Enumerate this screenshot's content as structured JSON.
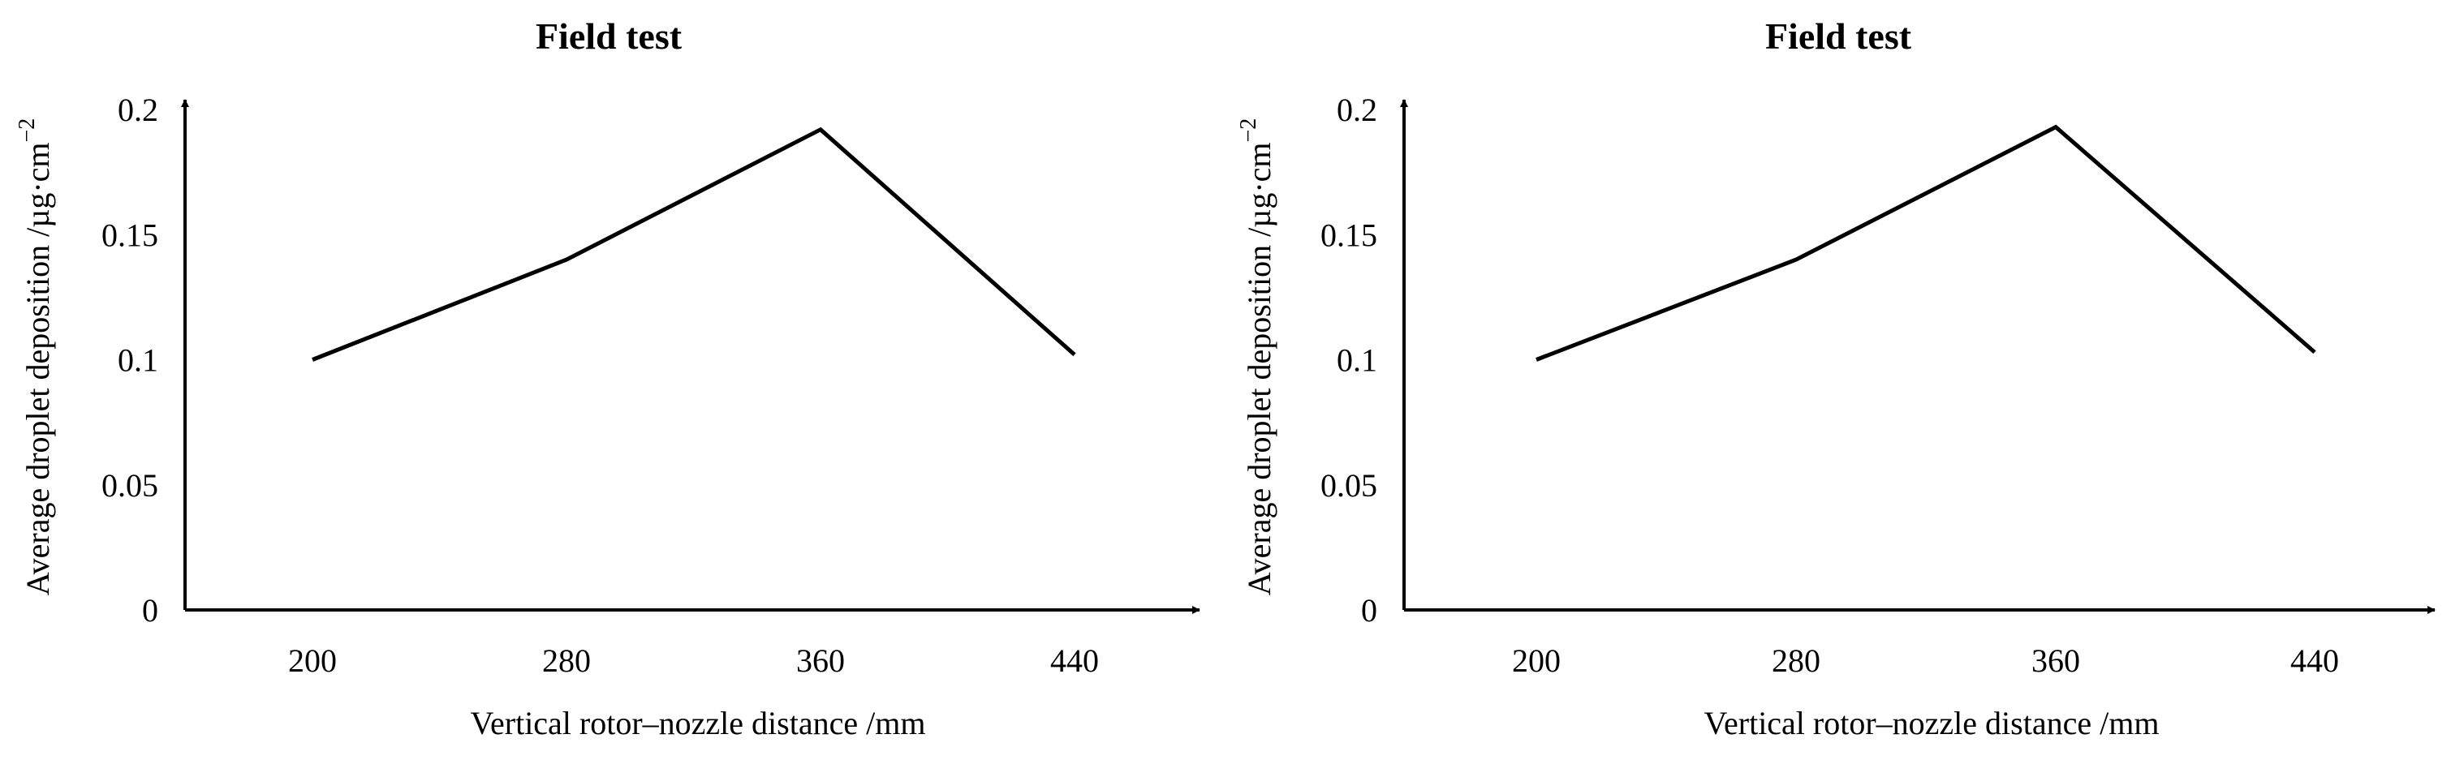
{
  "chart_data": [
    {
      "type": "line",
      "title": "Field test",
      "xlabel": "Vertical rotor–nozzle distance /mm",
      "ylabel": "Average droplet deposition /µg·cm",
      "ylabel_superscript": "−2",
      "categories": [
        "200",
        "280",
        "360",
        "440"
      ],
      "series": [
        {
          "values": [
            0.1,
            0.14,
            0.192,
            0.102
          ],
          "color": "#000000"
        }
      ],
      "yticks": [
        "0",
        "0.05",
        "0.1",
        "0.15",
        "0.2"
      ],
      "ylim": [
        0,
        0.2
      ],
      "grid": false,
      "legend": "none"
    },
    {
      "type": "line",
      "title": "Field test",
      "xlabel": "Vertical rotor–nozzle distance /mm",
      "ylabel": "Average droplet deposition /µg·cm",
      "ylabel_superscript": "−2",
      "categories": [
        "200",
        "280",
        "360",
        "440"
      ],
      "series": [
        {
          "values": [
            0.1,
            0.14,
            0.193,
            0.103
          ],
          "color": "#000000"
        }
      ],
      "yticks": [
        "0",
        "0.05",
        "0.1",
        "0.15",
        "0.2"
      ],
      "ylim": [
        0,
        0.2
      ],
      "grid": false,
      "legend": "none"
    }
  ]
}
